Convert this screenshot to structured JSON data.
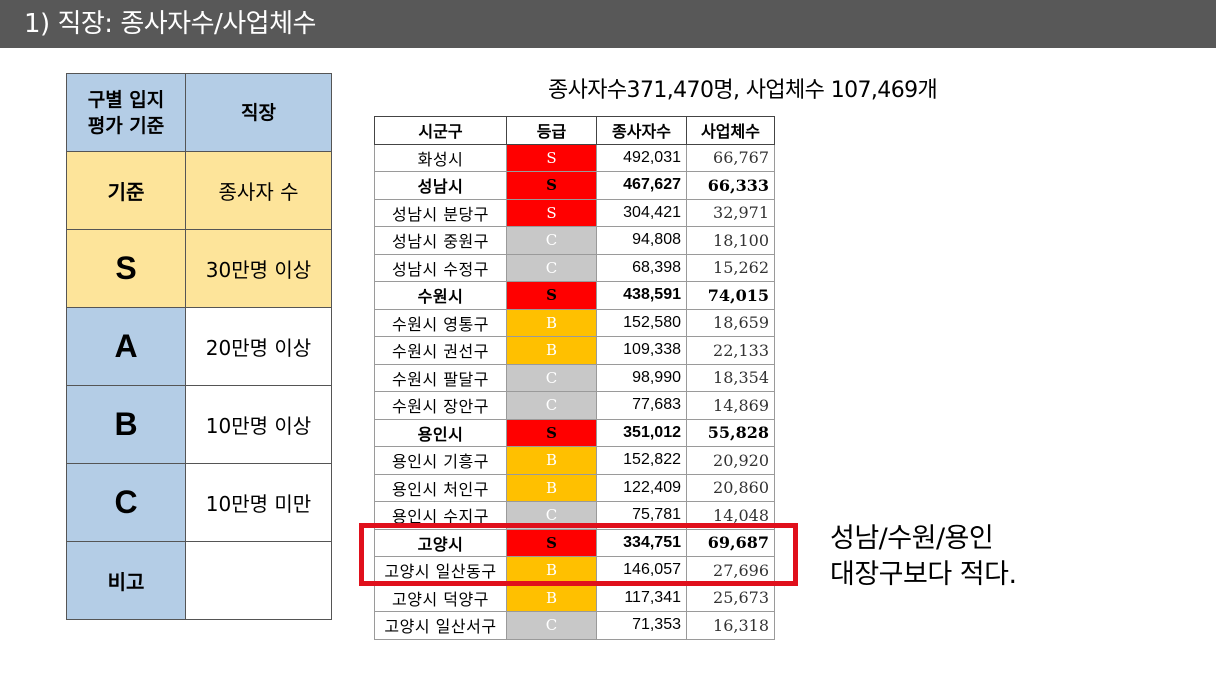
{
  "header": {
    "title": "1) 직장: 종사자수/사업체수"
  },
  "criteria": {
    "col1_header": "구별 입지\n평가 기준",
    "col2_header": "직장",
    "basis_label": "기준",
    "basis_value": "종사자 수",
    "grades": [
      {
        "grade": "S",
        "rule": "30만명 이상"
      },
      {
        "grade": "A",
        "rule": "20만명 이상"
      },
      {
        "grade": "B",
        "rule": "10만명 이상"
      },
      {
        "grade": "C",
        "rule": "10만명 미만"
      }
    ],
    "remark_label": "비고",
    "remark_value": ""
  },
  "summary": "종사자수371,470명, 사업체수 107,469개",
  "table": {
    "headers": [
      "시군구",
      "등급",
      "종사자수",
      "사업체수"
    ],
    "rows": [
      {
        "name": "화성시",
        "grade": "S",
        "workers": "492,031",
        "firms": "66,767",
        "bold": false
      },
      {
        "name": "성남시",
        "grade": "S",
        "workers": "467,627",
        "firms": "66,333",
        "bold": true
      },
      {
        "name": "성남시 분당구",
        "grade": "S",
        "workers": "304,421",
        "firms": "32,971",
        "bold": false
      },
      {
        "name": "성남시 중원구",
        "grade": "C",
        "workers": "94,808",
        "firms": "18,100",
        "bold": false
      },
      {
        "name": "성남시 수정구",
        "grade": "C",
        "workers": "68,398",
        "firms": "15,262",
        "bold": false
      },
      {
        "name": "수원시",
        "grade": "S",
        "workers": "438,591",
        "firms": "74,015",
        "bold": true
      },
      {
        "name": "수원시 영통구",
        "grade": "B",
        "workers": "152,580",
        "firms": "18,659",
        "bold": false
      },
      {
        "name": "수원시 권선구",
        "grade": "B",
        "workers": "109,338",
        "firms": "22,133",
        "bold": false
      },
      {
        "name": "수원시 팔달구",
        "grade": "C",
        "workers": "98,990",
        "firms": "18,354",
        "bold": false
      },
      {
        "name": "수원시 장안구",
        "grade": "C",
        "workers": "77,683",
        "firms": "14,869",
        "bold": false
      },
      {
        "name": "용인시",
        "grade": "S",
        "workers": "351,012",
        "firms": "55,828",
        "bold": true
      },
      {
        "name": "용인시 기흥구",
        "grade": "B",
        "workers": "152,822",
        "firms": "20,920",
        "bold": false
      },
      {
        "name": "용인시 처인구",
        "grade": "B",
        "workers": "122,409",
        "firms": "20,860",
        "bold": false
      },
      {
        "name": "용인시 수지구",
        "grade": "C",
        "workers": "75,781",
        "firms": "14,048",
        "bold": false
      },
      {
        "name": "고양시",
        "grade": "S",
        "workers": "334,751",
        "firms": "69,687",
        "bold": true
      },
      {
        "name": "고양시 일산동구",
        "grade": "B",
        "workers": "146,057",
        "firms": "27,696",
        "bold": false
      },
      {
        "name": "고양시 덕양구",
        "grade": "B",
        "workers": "117,341",
        "firms": "25,673",
        "bold": false
      },
      {
        "name": "고양시 일산서구",
        "grade": "C",
        "workers": "71,353",
        "firms": "16,318",
        "bold": false
      }
    ]
  },
  "note": {
    "line1": "성남/수원/용인",
    "line2": "대장구보다 적다."
  },
  "colors": {
    "S": "#ff0000",
    "B": "#ffc000",
    "C": "#c8c8c8",
    "highlight": "#e0101c"
  }
}
